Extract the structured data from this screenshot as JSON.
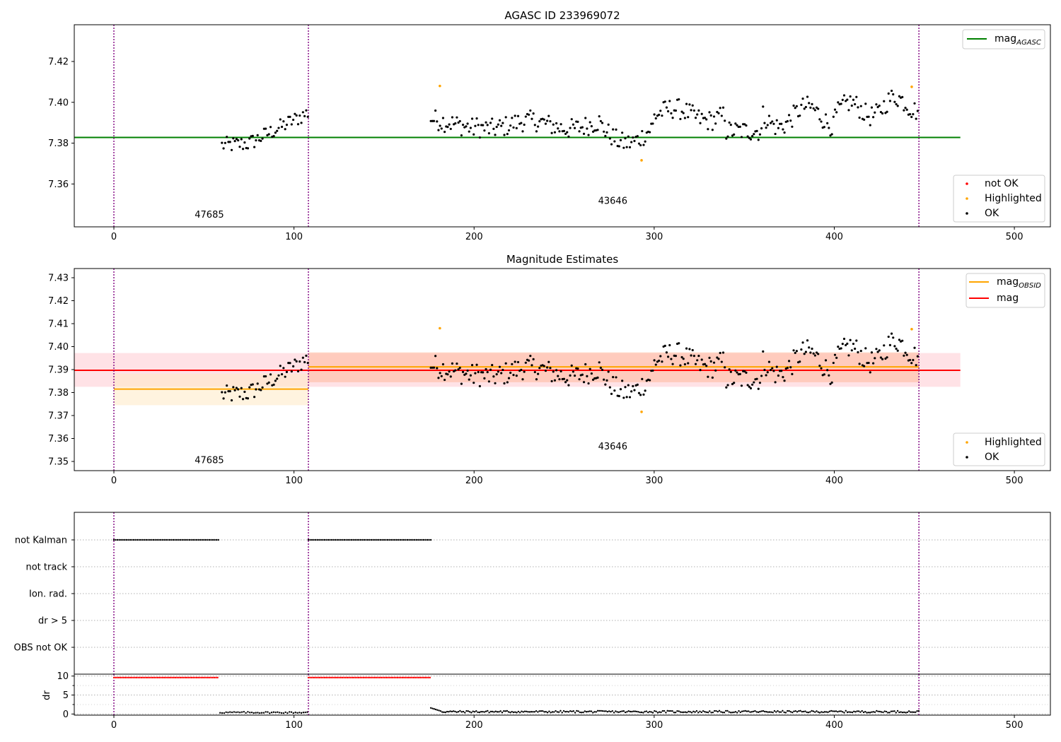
{
  "chart_data": [
    {
      "type": "scatter",
      "title": "AGASC ID 233969072",
      "xlim": [
        -22,
        520
      ],
      "ylim": [
        7.339,
        7.438
      ],
      "xticks": [
        0,
        100,
        200,
        300,
        400,
        500
      ],
      "yticks": [
        7.36,
        7.38,
        7.4,
        7.42
      ],
      "ytick_labels": [
        "7.36",
        "7.38",
        "7.40",
        "7.42"
      ],
      "hlines": [
        {
          "name": "mag",
          "name_subscript": "AGASC",
          "y": 7.3828,
          "x": [
            -22,
            470
          ],
          "color": "#008000"
        }
      ],
      "vlines": [
        0,
        108,
        447
      ],
      "annotations": [
        {
          "text": "47685",
          "x": 53,
          "y": 7.3435
        },
        {
          "text": "43646",
          "x": 277,
          "y": 7.3502
        }
      ],
      "legends": {
        "lines_top_right": [
          {
            "name": "mag",
            "sub": "AGASC",
            "color": "#008000"
          }
        ],
        "points_bottom_right": [
          {
            "name": "not OK",
            "color": "#ff0000"
          },
          {
            "name": "Highlighted",
            "color": "#ffa500"
          },
          {
            "name": "OK",
            "color": "#000000"
          }
        ]
      },
      "highlighted_points": [
        {
          "x": 181,
          "y": 7.408
        },
        {
          "x": 293,
          "y": 7.3716
        },
        {
          "x": 443,
          "y": 7.4076
        }
      ]
    },
    {
      "type": "scatter",
      "title": "Magnitude Estimates",
      "xlim": [
        -22,
        520
      ],
      "ylim": [
        7.346,
        7.434
      ],
      "xticks": [
        0,
        100,
        200,
        300,
        400,
        500
      ],
      "yticks": [
        7.35,
        7.36,
        7.37,
        7.38,
        7.39,
        7.4,
        7.41,
        7.42,
        7.43
      ],
      "ytick_labels": [
        "7.35",
        "7.36",
        "7.37",
        "7.38",
        "7.39",
        "7.40",
        "7.41",
        "7.42",
        "7.43"
      ],
      "bands": [
        {
          "x": [
            -22,
            470
          ],
          "y": [
            7.3825,
            7.3972
          ],
          "color": "#ffb6c1",
          "alpha": 0.4
        },
        {
          "x": [
            0,
            108
          ],
          "y": [
            7.3745,
            7.3882
          ],
          "color": "#ffe9c4",
          "alpha": 0.55
        },
        {
          "x": [
            108,
            447
          ],
          "y": [
            7.3845,
            7.3975
          ],
          "color": "#ffa070",
          "alpha": 0.35
        }
      ],
      "hlines": [
        {
          "name": "mag",
          "y": 7.3897,
          "x": [
            -22,
            470
          ],
          "color": "#ff0000"
        },
        {
          "name": "mag",
          "name_subscript": "OBSID",
          "y": 7.3815,
          "x": [
            0,
            108
          ],
          "color": "#ffa500"
        },
        {
          "name": "mag",
          "name_subscript": "OBSID",
          "y": 7.3912,
          "x": [
            108,
            447
          ],
          "color": "#ffa500"
        }
      ],
      "vlines": [
        0,
        108,
        447
      ],
      "annotations": [
        {
          "text": "47685",
          "x": 53,
          "y": 7.3493
        },
        {
          "text": "43646",
          "x": 277,
          "y": 7.3553
        }
      ],
      "legends": {
        "lines_top_right": [
          {
            "name": "mag",
            "sub": "OBSID",
            "color": "#ffa500"
          },
          {
            "name": "mag",
            "sub": "",
            "color": "#ff0000"
          }
        ],
        "points_bottom_right": [
          {
            "name": "Highlighted",
            "color": "#ffa500"
          },
          {
            "name": "OK",
            "color": "#000000"
          }
        ]
      },
      "highlighted_points": [
        {
          "x": 181,
          "y": 7.408
        },
        {
          "x": 293,
          "y": 7.3716
        },
        {
          "x": 443,
          "y": 7.4076
        }
      ]
    },
    {
      "type": "scatter",
      "xlim": [
        -22,
        520
      ],
      "flag_labels": [
        "not Kalman",
        "not track",
        "Ion. rad.",
        "dr > 5",
        "OBS not OK"
      ],
      "flag_segments": [
        {
          "flag": "not Kalman",
          "x": [
            0,
            58
          ]
        },
        {
          "flag": "not Kalman",
          "x": [
            108,
            176
          ]
        }
      ],
      "vlines": [
        0,
        108,
        447
      ]
    },
    {
      "type": "scatter",
      "ylabel": "dr",
      "xlim": [
        -22,
        520
      ],
      "ylim": [
        -0.3,
        10.5
      ],
      "xticks": [
        0,
        100,
        200,
        300,
        400,
        500
      ],
      "yticks": [
        0,
        5,
        10
      ],
      "ytick_labels": [
        "0",
        "5",
        "10"
      ],
      "minor_yticks": [
        2.5,
        7.5
      ],
      "clipped_segments": [
        {
          "x": [
            0,
            58
          ],
          "y": 9.6,
          "color": "#ff0000"
        },
        {
          "x": [
            108,
            176
          ],
          "y": 9.6,
          "color": "#ff0000"
        }
      ],
      "vlines": [
        0,
        108,
        447
      ]
    }
  ]
}
